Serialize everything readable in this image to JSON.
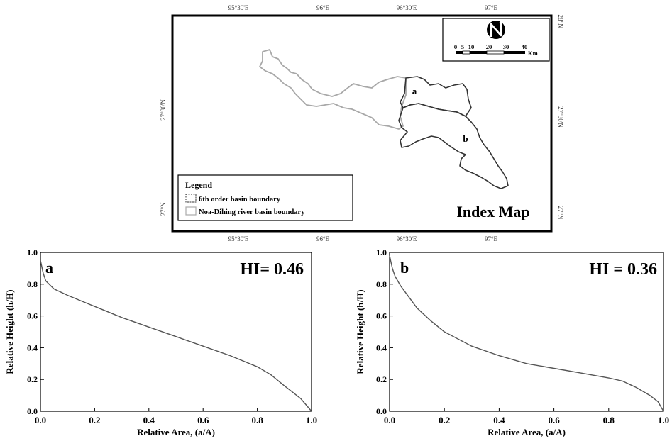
{
  "index_map": {
    "top_ticks": [
      "95°30'E",
      "96°E",
      "96°30'E",
      "97°E"
    ],
    "bottom_ticks": [
      "95°30'E",
      "96°E",
      "96°30'E",
      "97°E"
    ],
    "left_ticks": [
      "27°30'N",
      "27°N"
    ],
    "right_ticks": [
      "28°N",
      "27°30'N",
      "27°N"
    ],
    "basin_a_label": "a",
    "basin_b_label": "b",
    "title": "Index Map",
    "legend": {
      "title": "Legend",
      "items": [
        {
          "label": "6th order basin boundary",
          "color": "#333333",
          "dash": true
        },
        {
          "label": "Noa-Dihing river basin boundary",
          "color": "#aaaaaa",
          "dash": false
        }
      ]
    },
    "scale_bar": {
      "ticks": [
        "0",
        "5",
        "10",
        "20",
        "30",
        "40"
      ],
      "unit": "Km"
    },
    "north_arrow": "north-arrow-icon"
  },
  "chart_data": [
    {
      "type": "line",
      "panel_label": "a",
      "annotation": "HI= 0.46",
      "xlabel": "Relative Area, (a/A)",
      "ylabel": "Relative Height (h/H)",
      "xlim": [
        0,
        1
      ],
      "ylim": [
        0,
        1
      ],
      "xticks": [
        "0.0",
        "0.2",
        "0.4",
        "0.6",
        "0.8",
        "1.0"
      ],
      "yticks": [
        "0.0",
        "0.2",
        "0.4",
        "0.6",
        "0.8",
        "1.0"
      ],
      "grid": false,
      "color": "#555555",
      "x": [
        0,
        0.005,
        0.01,
        0.02,
        0.05,
        0.1,
        0.2,
        0.3,
        0.4,
        0.5,
        0.6,
        0.7,
        0.8,
        0.85,
        0.9,
        0.93,
        0.96,
        0.98,
        1.0
      ],
      "y": [
        0.95,
        0.91,
        0.87,
        0.82,
        0.77,
        0.73,
        0.66,
        0.59,
        0.53,
        0.47,
        0.41,
        0.35,
        0.28,
        0.23,
        0.16,
        0.12,
        0.08,
        0.04,
        0.0
      ]
    },
    {
      "type": "line",
      "panel_label": "b",
      "annotation": "HI = 0.36",
      "xlabel": "Relative Area, (a/A)",
      "ylabel": "Relative Height (h/H)",
      "xlim": [
        0,
        1
      ],
      "ylim": [
        0,
        1
      ],
      "xticks": [
        "0.0",
        "0.2",
        "0.4",
        "0.6",
        "0.8",
        "1.0"
      ],
      "yticks": [
        "0.0",
        "0.2",
        "0.4",
        "0.6",
        "0.8",
        "1.0"
      ],
      "grid": false,
      "color": "#555555",
      "x": [
        0,
        0.005,
        0.01,
        0.02,
        0.04,
        0.07,
        0.1,
        0.15,
        0.2,
        0.3,
        0.4,
        0.5,
        0.6,
        0.7,
        0.8,
        0.85,
        0.9,
        0.95,
        0.98,
        1.0
      ],
      "y": [
        0.98,
        0.94,
        0.9,
        0.85,
        0.79,
        0.72,
        0.65,
        0.57,
        0.5,
        0.41,
        0.35,
        0.3,
        0.27,
        0.24,
        0.21,
        0.19,
        0.15,
        0.1,
        0.06,
        0.0
      ]
    }
  ]
}
